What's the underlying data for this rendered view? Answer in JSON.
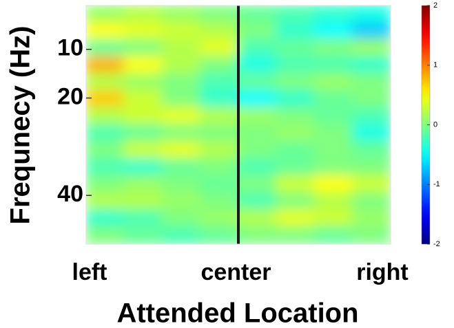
{
  "chart_data": {
    "type": "heatmap",
    "xlabel": "Attended Location",
    "ylabel": "Frequnecy (Hz)",
    "categories": [
      "left",
      "center",
      "right"
    ],
    "ylim": [
      1,
      50
    ],
    "yticks": [
      10,
      20,
      40
    ],
    "y_inverted": true,
    "clim": [
      -2,
      2
    ],
    "cticks": [
      2,
      1,
      0,
      -1,
      -2
    ],
    "colormap": "jet",
    "z": [
      [
        0.1,
        0.2,
        0.1,
        0,
        -0.1,
        -0.2,
        -0.3,
        -0.4
      ],
      [
        0.5,
        0.4,
        0.3,
        0.2,
        0,
        -0.3,
        -0.5,
        -0.7
      ],
      [
        -0.1,
        0,
        0.2,
        0.4,
        -0.2,
        -0.1,
        0,
        0.1
      ],
      [
        0.8,
        0.5,
        0.2,
        0,
        -0.4,
        -0.2,
        -0.2,
        -0.3
      ],
      [
        0.2,
        0.1,
        0,
        -0.2,
        -0.1,
        0,
        0.1,
        0
      ],
      [
        0.7,
        0.3,
        0,
        -0.3,
        -0.5,
        -0.3,
        -0.1,
        0
      ],
      [
        0.2,
        0.3,
        0.4,
        0.2,
        0.1,
        0,
        -0.1,
        -0.2
      ],
      [
        -0.2,
        -0.1,
        0,
        0,
        0,
        0.1,
        0,
        -0.4
      ],
      [
        0,
        0.3,
        0.4,
        0.2,
        0,
        -0.1,
        0,
        -0.1
      ],
      [
        -0.2,
        -0.3,
        -0.1,
        0,
        -0.2,
        -0.1,
        0,
        0
      ],
      [
        0,
        0.1,
        0,
        -0.1,
        0,
        0.3,
        0.5,
        0.3
      ],
      [
        0.2,
        0.2,
        0.1,
        0,
        -0.2,
        0,
        0.2,
        0
      ],
      [
        -0.3,
        -0.2,
        0,
        0.1,
        0.2,
        0.4,
        0.3,
        0.1
      ],
      [
        0,
        -0.1,
        -0.2,
        -0.1,
        0,
        0,
        -0.1,
        0
      ]
    ]
  }
}
